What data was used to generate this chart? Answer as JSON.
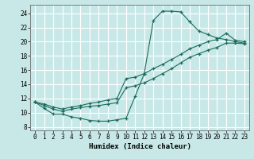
{
  "xlabel": "Humidex (Indice chaleur)",
  "bg_color": "#c8e8e8",
  "grid_color": "#ffffff",
  "line_color": "#1a6b5a",
  "xlim": [
    -0.5,
    23.5
  ],
  "ylim": [
    7.5,
    25.2
  ],
  "xticks": [
    0,
    1,
    2,
    3,
    4,
    5,
    6,
    7,
    8,
    9,
    10,
    11,
    12,
    13,
    14,
    15,
    16,
    17,
    18,
    19,
    20,
    21,
    22,
    23
  ],
  "yticks": [
    8,
    10,
    12,
    14,
    16,
    18,
    20,
    22,
    24
  ],
  "line1_x": [
    0,
    1,
    2,
    3,
    4,
    5,
    6,
    7,
    8,
    9,
    10,
    11,
    12,
    13,
    14,
    15,
    16,
    17,
    18,
    19,
    20,
    21,
    22,
    23
  ],
  "line1_y": [
    11.5,
    10.6,
    9.8,
    9.8,
    9.4,
    9.2,
    8.9,
    8.8,
    8.8,
    9.0,
    9.2,
    12.3,
    15.5,
    23.0,
    24.3,
    24.3,
    24.2,
    22.8,
    21.5,
    21.0,
    20.5,
    20.3,
    20.0,
    19.8
  ],
  "line2_x": [
    0,
    1,
    2,
    3,
    4,
    5,
    6,
    7,
    8,
    9,
    10,
    11,
    12,
    13,
    14,
    15,
    16,
    17,
    18,
    19,
    20,
    21,
    22,
    23
  ],
  "line2_y": [
    11.5,
    11.2,
    10.8,
    10.5,
    10.8,
    11.0,
    11.3,
    11.5,
    11.8,
    12.0,
    14.8,
    15.0,
    15.5,
    16.2,
    16.8,
    17.5,
    18.2,
    19.0,
    19.5,
    20.0,
    20.3,
    21.2,
    20.2,
    20.0
  ],
  "line3_x": [
    0,
    1,
    2,
    3,
    4,
    5,
    6,
    7,
    8,
    9,
    10,
    11,
    12,
    13,
    14,
    15,
    16,
    17,
    18,
    19,
    20,
    21,
    22,
    23
  ],
  "line3_y": [
    11.5,
    11.0,
    10.5,
    10.2,
    10.5,
    10.7,
    10.9,
    11.0,
    11.2,
    11.4,
    13.5,
    13.8,
    14.2,
    14.8,
    15.5,
    16.2,
    17.0,
    17.8,
    18.3,
    18.8,
    19.2,
    19.8,
    19.8,
    19.7
  ]
}
